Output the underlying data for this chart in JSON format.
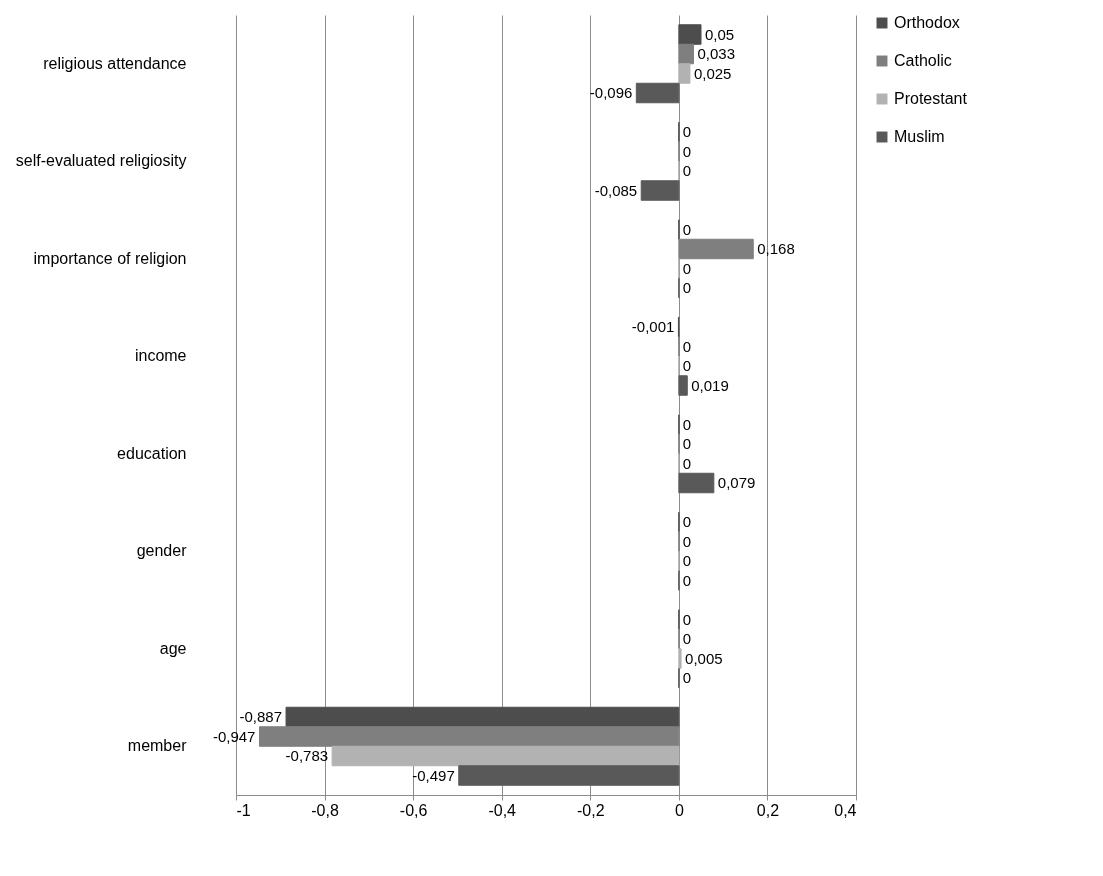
{
  "chart_data": {
    "type": "bar",
    "orientation": "horizontal",
    "categories": [
      "religious attendance",
      "self-evaluated religiosity",
      "importance of religion",
      "income",
      "education",
      "gender",
      "age",
      "member"
    ],
    "series": [
      {
        "name": "Orthodox",
        "color": "#4d4d4d",
        "values": [
          0.05,
          0,
          0,
          -0.001,
          0,
          0,
          0,
          -0.887
        ],
        "value_labels": [
          "0,05",
          "0",
          "0",
          "-0,001",
          "0",
          "0",
          "0",
          "-0,887"
        ]
      },
      {
        "name": "Catholic",
        "color": "#7f7f7f",
        "values": [
          0.033,
          0,
          0.168,
          0,
          0,
          0,
          0,
          -0.947
        ],
        "value_labels": [
          "0,033",
          "0",
          "0,168",
          "0",
          "0",
          "0",
          "0",
          "-0,947"
        ]
      },
      {
        "name": "Protestant",
        "color": "#b2b2b2",
        "values": [
          0.025,
          0,
          0,
          0,
          0,
          0,
          0.005,
          -0.783
        ],
        "value_labels": [
          "0,025",
          "0",
          "0",
          "0",
          "0",
          "0",
          "0,005",
          "-0,783"
        ]
      },
      {
        "name": "Muslim",
        "color": "#595959",
        "values": [
          -0.096,
          -0.085,
          0,
          0.019,
          0.079,
          0,
          0,
          -0.497
        ],
        "value_labels": [
          "-0,096",
          "-0,085",
          "0",
          "0,019",
          "0,079",
          "0",
          "0",
          "-0,497"
        ]
      }
    ],
    "xlim": [
      -1,
      0.4
    ],
    "xticks": [
      {
        "value": -1,
        "label": "-1"
      },
      {
        "value": -0.8,
        "label": "-0,8"
      },
      {
        "value": -0.6,
        "label": "-0,6"
      },
      {
        "value": -0.4,
        "label": "-0,4"
      },
      {
        "value": -0.2,
        "label": "-0,2"
      },
      {
        "value": 0,
        "label": "0"
      },
      {
        "value": 0.2,
        "label": "0,2"
      },
      {
        "value": 0.4,
        "label": "0,4"
      }
    ],
    "grid": "x",
    "legend": "right"
  }
}
